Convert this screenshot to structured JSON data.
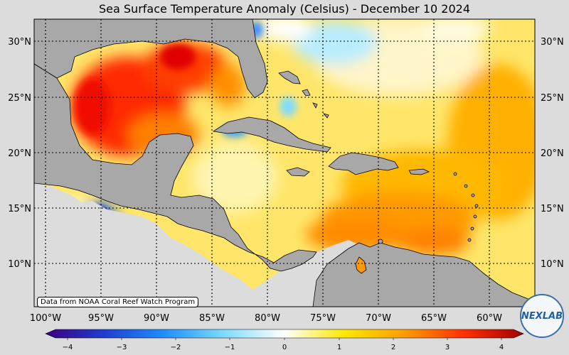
{
  "title": "Sea Surface Temperature Anomaly (Celsius) - December 10 2024",
  "attribution": "Data from NOAA Coral Reef Watch Program",
  "logo_text": "NEXLAB",
  "latitude_labels": [
    "30°N",
    "25°N",
    "20°N",
    "15°N",
    "10°N"
  ],
  "longitude_labels": [
    "100°W",
    "95°W",
    "90°W",
    "85°W",
    "80°W",
    "75°W",
    "70°W",
    "65°W",
    "60°W"
  ],
  "colorbar": {
    "ticks": [
      "-4",
      "-3",
      "-2",
      "-1",
      "0",
      "1",
      "2",
      "3",
      "4"
    ],
    "min": -4,
    "max": 4,
    "colors": [
      "#3a0080",
      "#1f3fd0",
      "#1f8fff",
      "#7fdcff",
      "#ffffff",
      "#ffe800",
      "#ff9c00",
      "#ff3000",
      "#a00000"
    ]
  },
  "colors": {
    "land": "#a8a8a8",
    "ocean_base": "#ffe060",
    "background": "#dcdcdc"
  }
}
